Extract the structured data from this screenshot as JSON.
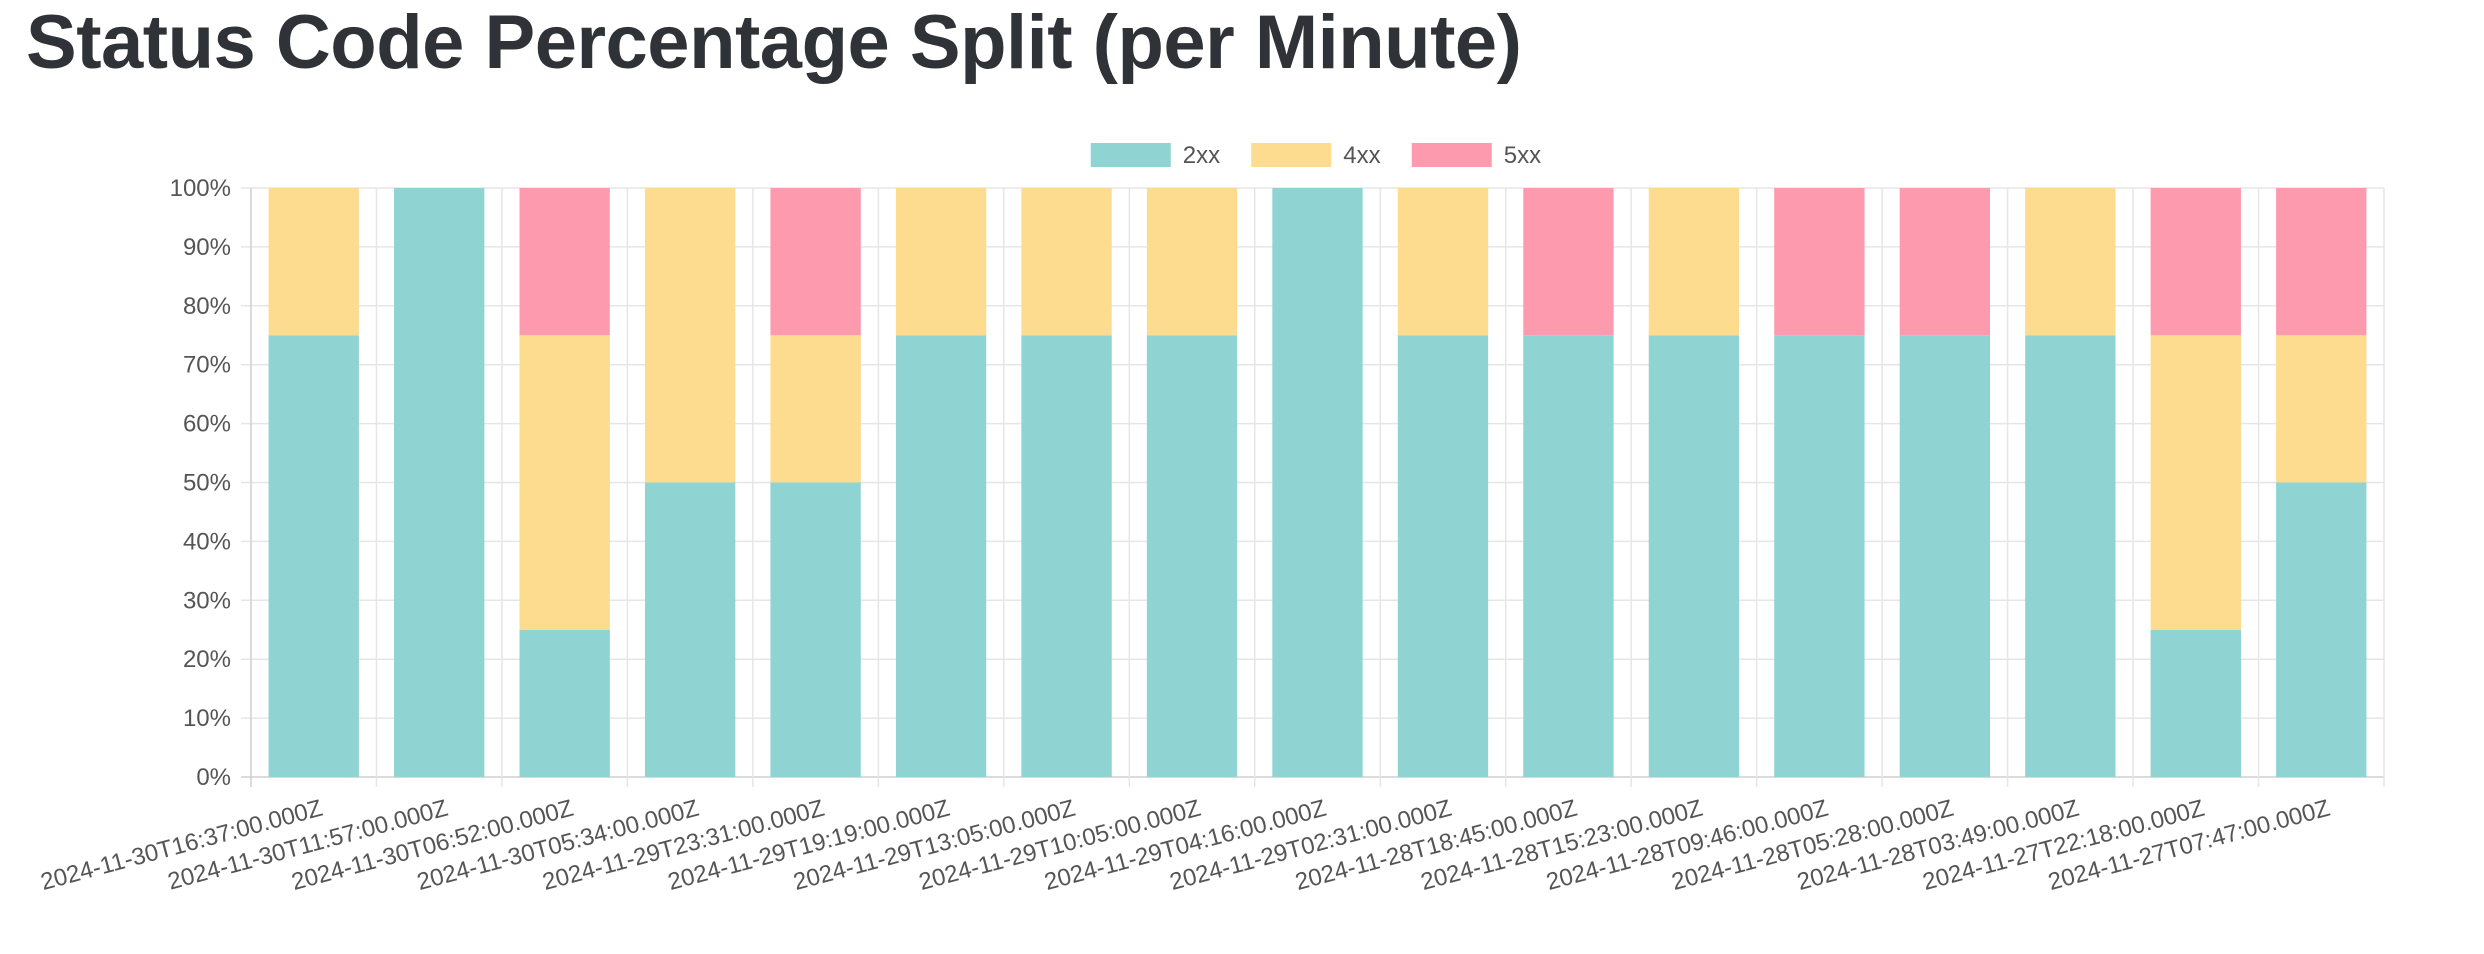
{
  "title": "Status Code Percentage Split (per Minute)",
  "chart_data": {
    "type": "bar",
    "stacked": true,
    "title": "Status Code Percentage Split (per Minute)",
    "xlabel": "",
    "ylabel": "",
    "ylim": [
      0,
      100
    ],
    "y_tick_step": 10,
    "y_tick_suffix": "%",
    "grid": true,
    "legend_position": "top",
    "categories": [
      "2024-11-30T16:37:00.000Z",
      "2024-11-30T11:57:00.000Z",
      "2024-11-30T06:52:00.000Z",
      "2024-11-30T05:34:00.000Z",
      "2024-11-29T23:31:00.000Z",
      "2024-11-29T19:19:00.000Z",
      "2024-11-29T13:05:00.000Z",
      "2024-11-29T10:05:00.000Z",
      "2024-11-29T04:16:00.000Z",
      "2024-11-29T02:31:00.000Z",
      "2024-11-28T18:45:00.000Z",
      "2024-11-28T15:23:00.000Z",
      "2024-11-28T09:46:00.000Z",
      "2024-11-28T05:28:00.000Z",
      "2024-11-28T03:49:00.000Z",
      "2024-11-27T22:18:00.000Z",
      "2024-11-27T07:47:00.000Z"
    ],
    "series": [
      {
        "name": "2xx",
        "color": "#8fd3d3",
        "values": [
          75,
          100,
          25,
          50,
          50,
          75,
          75,
          75,
          100,
          75,
          75,
          75,
          75,
          75,
          75,
          25,
          50
        ]
      },
      {
        "name": "4xx",
        "color": "#fddb8f",
        "values": [
          25,
          0,
          50,
          50,
          25,
          25,
          25,
          25,
          0,
          25,
          0,
          25,
          0,
          0,
          25,
          50,
          25
        ]
      },
      {
        "name": "5xx",
        "color": "#fe9aae",
        "values": [
          0,
          0,
          25,
          0,
          25,
          0,
          0,
          0,
          0,
          0,
          25,
          0,
          25,
          25,
          0,
          25,
          25
        ]
      }
    ]
  }
}
